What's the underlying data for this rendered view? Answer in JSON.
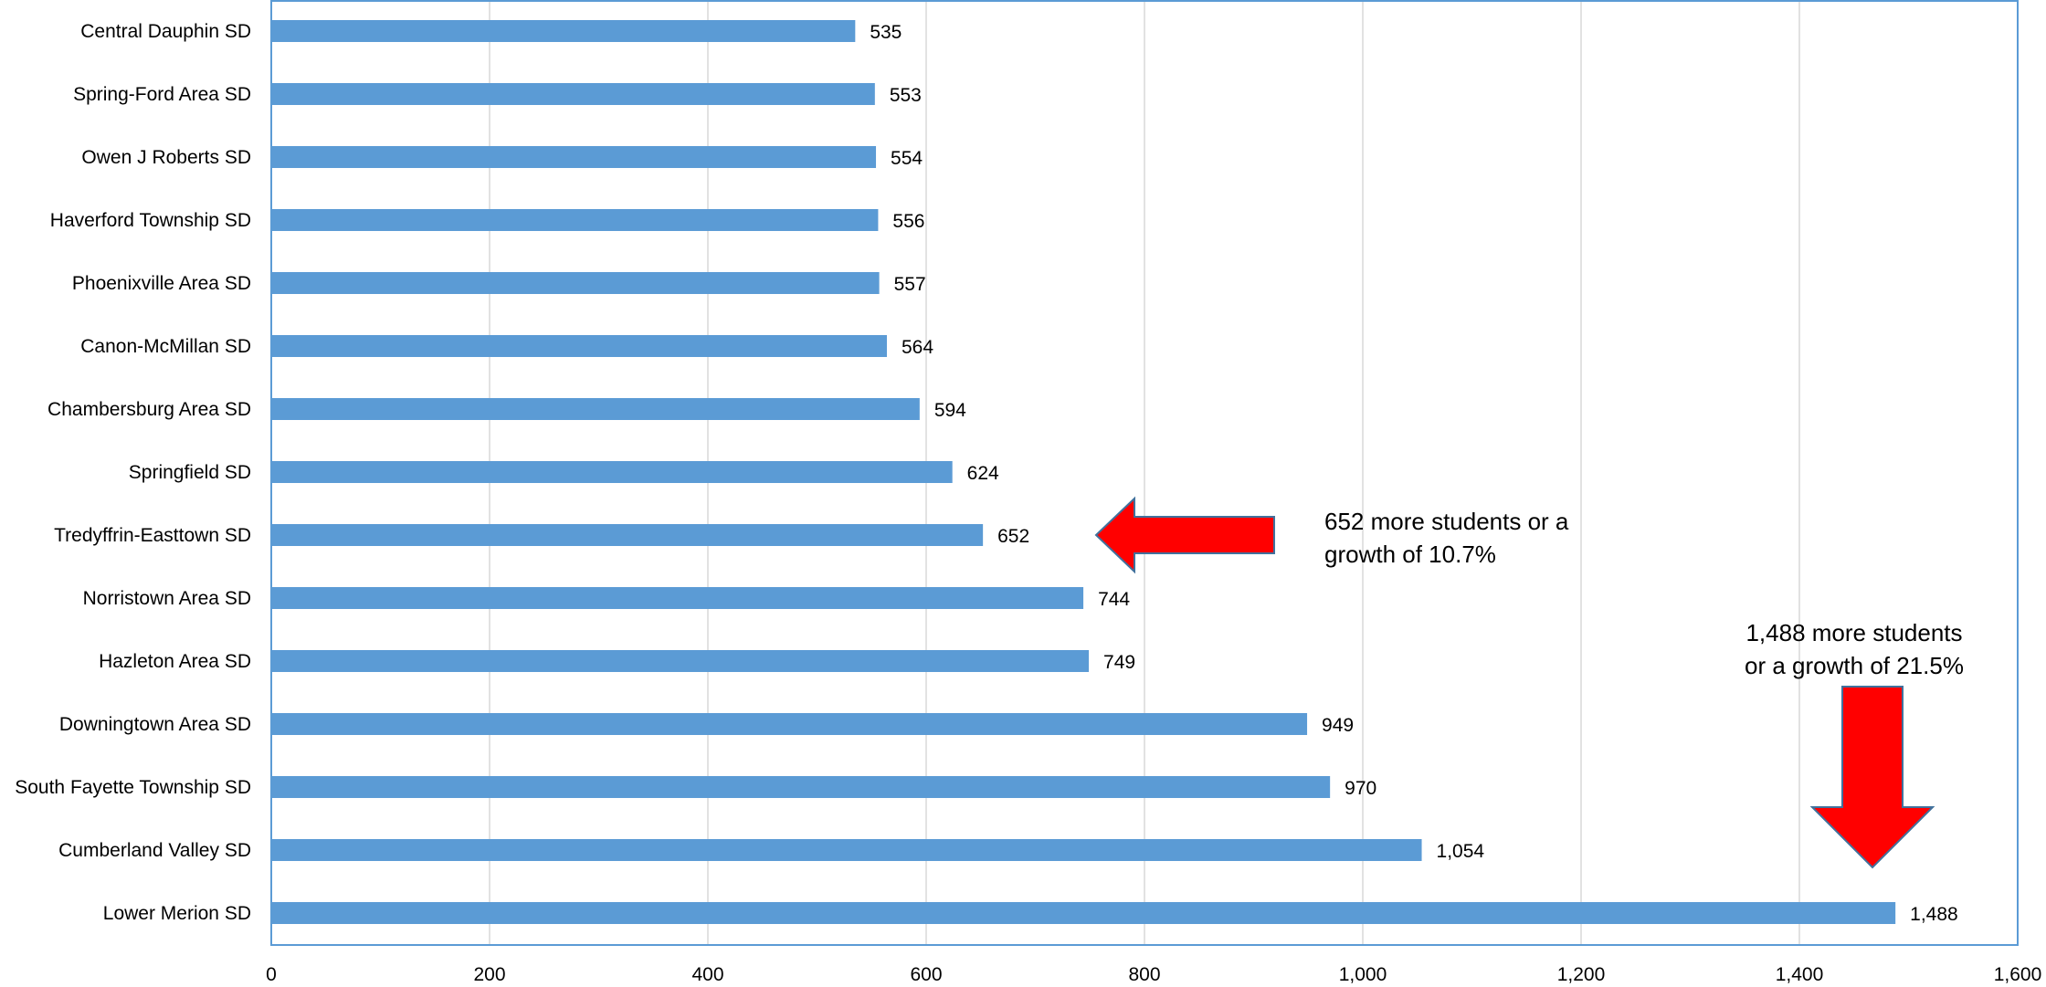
{
  "chart_data": {
    "type": "bar",
    "orientation": "horizontal",
    "categories": [
      "Central Dauphin SD",
      "Spring-Ford Area SD",
      "Owen J Roberts SD",
      "Haverford Township SD",
      "Phoenixville Area SD",
      "Canon-McMillan SD",
      "Chambersburg Area SD",
      "Springfield SD",
      "Tredyffrin-Easttown SD",
      "Norristown Area SD",
      "Hazleton Area SD",
      "Downingtown Area SD",
      "South Fayette Township SD",
      "Cumberland Valley SD",
      "Lower Merion SD"
    ],
    "values": [
      535,
      553,
      554,
      556,
      557,
      564,
      594,
      624,
      652,
      744,
      749,
      949,
      970,
      1054,
      1488
    ],
    "value_labels": [
      "535",
      "553",
      "554",
      "556",
      "557",
      "564",
      "594",
      "624",
      "652",
      "744",
      "749",
      "949",
      "970",
      "1,054",
      "1,488"
    ],
    "xlim": [
      0,
      1600
    ],
    "x_ticks": [
      0,
      200,
      400,
      600,
      800,
      1000,
      1200,
      1400,
      1600
    ],
    "x_tick_labels": [
      "0",
      "200",
      "400",
      "600",
      "800",
      "1,000",
      "1,200",
      "1,400",
      "1,600"
    ],
    "grid": true,
    "title": "",
    "xlabel": "",
    "ylabel": "",
    "colors": {
      "bar": "#5b9bd5",
      "grid": "#d9d9d9",
      "frame": "#5b9bd5",
      "arrow_fill": "#ff0000",
      "arrow_stroke": "#41719c"
    },
    "annotations": [
      {
        "target": "Tredyffrin-Easttown SD",
        "arrow": "left",
        "lines": [
          "652 more students or a",
          "growth of 10.7%"
        ]
      },
      {
        "target": "Lower Merion SD",
        "arrow": "down",
        "lines": [
          "1,488 more students",
          "or a growth of 21.5%"
        ]
      }
    ]
  }
}
